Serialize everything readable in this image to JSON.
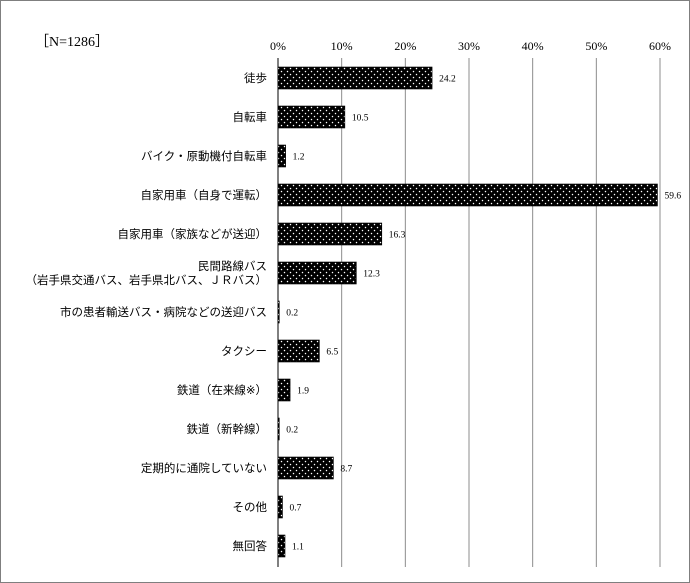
{
  "chart_data": {
    "type": "bar",
    "orientation": "horizontal",
    "sample_label": "［N=1286］",
    "categories": [
      "徒歩",
      "自転車",
      "バイク・原動機付自転車",
      "自家用車（自身で運転）",
      "自家用車（家族などが送迎）",
      "民間路線バス\n（岩手県交通バス、岩手県北バス、ＪＲバス）",
      "市の患者輸送バス・病院などの送迎バス",
      "タクシー",
      "鉄道（在来線※）",
      "鉄道（新幹線）",
      "定期的に通院していない",
      "その他",
      "無回答"
    ],
    "values": [
      24.2,
      10.5,
      1.2,
      59.6,
      16.3,
      12.3,
      0.2,
      6.5,
      1.9,
      0.2,
      8.7,
      0.7,
      1.1
    ],
    "value_labels": [
      "24.2",
      "10.5",
      "1.2",
      "59.6",
      "16.3",
      "12.3",
      "0.2",
      "6.5",
      "1.9",
      "0.2",
      "8.7",
      "0.7",
      "1.1"
    ],
    "xlim": [
      0,
      60
    ],
    "xticks": [
      0,
      10,
      20,
      30,
      40,
      50,
      60
    ],
    "xtick_labels": [
      "0%",
      "10%",
      "20%",
      "30%",
      "40%",
      "50%",
      "60%"
    ],
    "axis_position": "top",
    "grid": true,
    "bar_fill": "black with white dot pattern",
    "colors": {
      "bar": "#000000",
      "dot": "#ffffff",
      "grid": "#8c8c8c",
      "frame": "#7f7f7f"
    }
  }
}
